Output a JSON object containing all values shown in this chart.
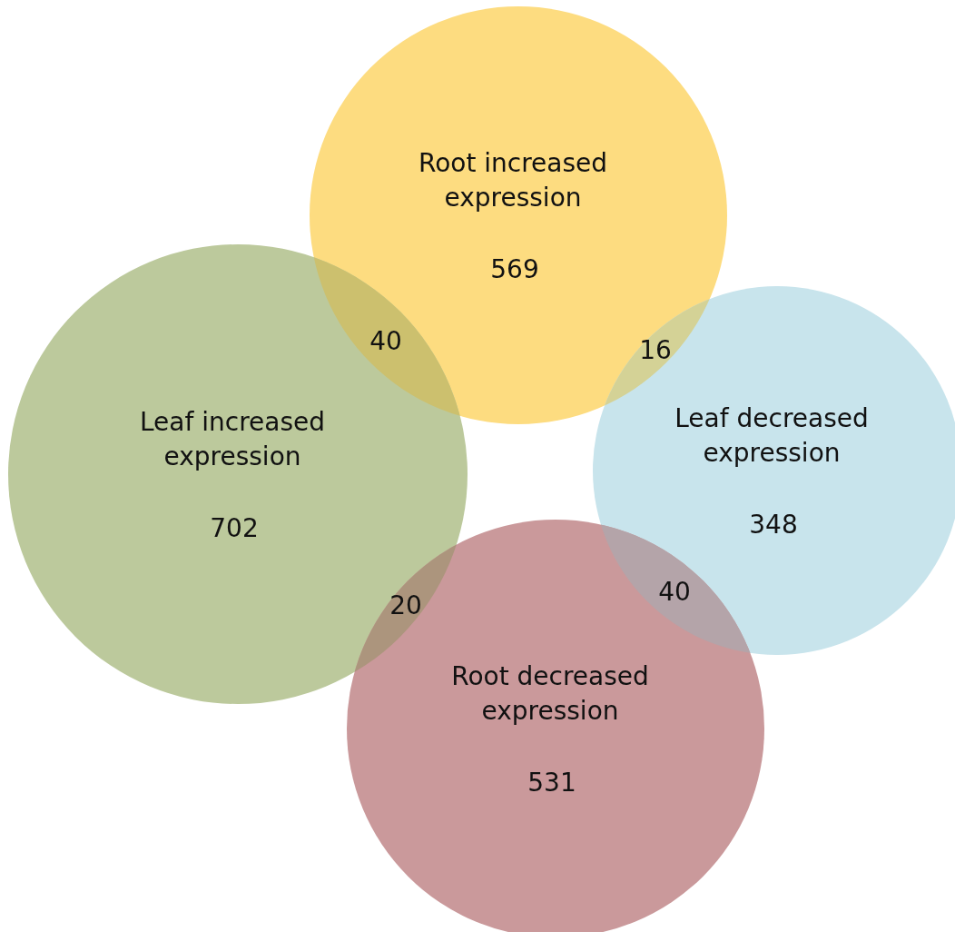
{
  "chart_data": {
    "type": "other",
    "categories": [
      "Root increased expression",
      "Leaf increased expression",
      "Leaf decreased expression",
      "Root decreased expression"
    ],
    "values": [
      569,
      702,
      348,
      531
    ],
    "colors": [
      "#fddc80",
      "#bcc99c",
      "#c8e4ec",
      "#ca999b"
    ],
    "data_labels": true,
    "annotations": [
      "40",
      "16",
      "20",
      "40"
    ]
  }
}
